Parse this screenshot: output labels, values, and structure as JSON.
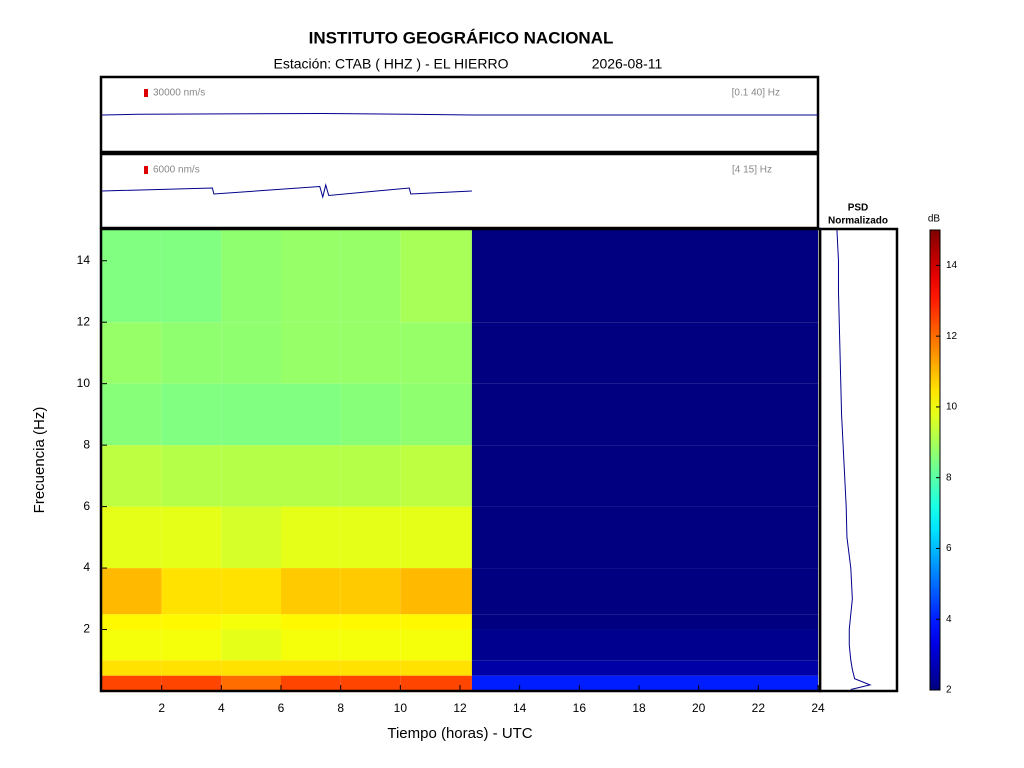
{
  "title": "INSTITUTO GEOGRÁFICO NACIONAL",
  "subtitle": "Estación:  CTAB ( HHZ ) - EL HIERRO",
  "date": "2026-08-11",
  "chart_data": [
    {
      "type": "line",
      "label": "30000 nm/s",
      "band": "[0.1 40] Hz",
      "color": "#00008b",
      "x": [
        0,
        1.2,
        7.4,
        10.3,
        12.4,
        24
      ],
      "values": [
        0,
        0.05,
        0.1,
        0.05,
        0,
        0
      ],
      "xlim": [
        0,
        24
      ],
      "ylim": [
        -1,
        1
      ]
    },
    {
      "type": "line",
      "label": "6000 nm/s",
      "band": "[4 15] Hz",
      "color": "#00008b",
      "x": [
        0,
        3.7,
        3.75,
        7.3,
        7.4,
        7.5,
        7.6,
        10.3,
        10.35,
        12.4
      ],
      "values": [
        0,
        0.2,
        -0.2,
        0.3,
        -0.4,
        0.4,
        -0.3,
        0.2,
        -0.2,
        0
      ],
      "xlim": [
        0,
        24
      ],
      "ylim": [
        -1,
        1
      ]
    },
    {
      "type": "heatmap",
      "xlabel": "Tiempo (horas) - UTC",
      "ylabel": "Frecuencia  (Hz)",
      "x_edges": [
        0,
        2,
        4,
        6,
        8,
        10,
        12.4,
        24
      ],
      "y_edges": [
        0,
        0.5,
        1,
        2,
        2.5,
        4,
        6,
        8,
        10,
        12,
        15
      ],
      "z": [
        [
          12.5,
          12.5,
          12,
          12.5,
          12.5,
          12.5,
          4
        ],
        [
          10.5,
          10.5,
          10.5,
          10.5,
          10.5,
          10.5,
          2.5
        ],
        [
          10,
          10,
          9.8,
          10,
          10,
          10,
          2.2
        ],
        [
          10.2,
          10.2,
          10,
          10.2,
          10.2,
          10.2,
          2
        ],
        [
          11,
          10.5,
          10.5,
          10.8,
          10.8,
          11,
          2
        ],
        [
          9.8,
          9.8,
          9.6,
          9.8,
          9.8,
          9.8,
          2
        ],
        [
          9.3,
          9.2,
          9.2,
          9.2,
          9.2,
          9.3,
          2
        ],
        [
          8.6,
          8.5,
          8.5,
          8.5,
          8.6,
          8.7,
          2
        ],
        [
          8.8,
          8.7,
          8.7,
          8.8,
          8.8,
          8.8,
          2
        ],
        [
          8.5,
          8.5,
          8.7,
          8.8,
          8.8,
          9,
          2
        ]
      ],
      "xlim": [
        0,
        24
      ],
      "ylim": [
        0,
        15
      ],
      "xticks": [
        2,
        4,
        6,
        8,
        10,
        12,
        14,
        16,
        18,
        20,
        22,
        24
      ],
      "yticks": [
        2,
        4,
        6,
        8,
        10,
        12,
        14
      ],
      "colormap": "jet",
      "colorbar_label": "dB",
      "zlim": [
        2,
        15
      ],
      "zticks": [
        2,
        4,
        6,
        8,
        10,
        12,
        14
      ]
    },
    {
      "type": "psd",
      "title": "PSD",
      "subtitle": "Normalizado",
      "color": "#00008b",
      "frequencies": [
        0.05,
        0.2,
        0.4,
        0.7,
        1,
        1.5,
        2,
        3,
        4,
        5,
        6,
        7,
        8,
        9,
        10,
        11,
        12,
        13,
        14,
        15
      ],
      "values": [
        0.4,
        0.65,
        0.45,
        0.42,
        0.4,
        0.38,
        0.38,
        0.42,
        0.4,
        0.35,
        0.34,
        0.32,
        0.3,
        0.28,
        0.27,
        0.26,
        0.25,
        0.24,
        0.24,
        0.22
      ],
      "xlim": [
        0,
        1
      ],
      "ylim": [
        0,
        15
      ]
    }
  ]
}
